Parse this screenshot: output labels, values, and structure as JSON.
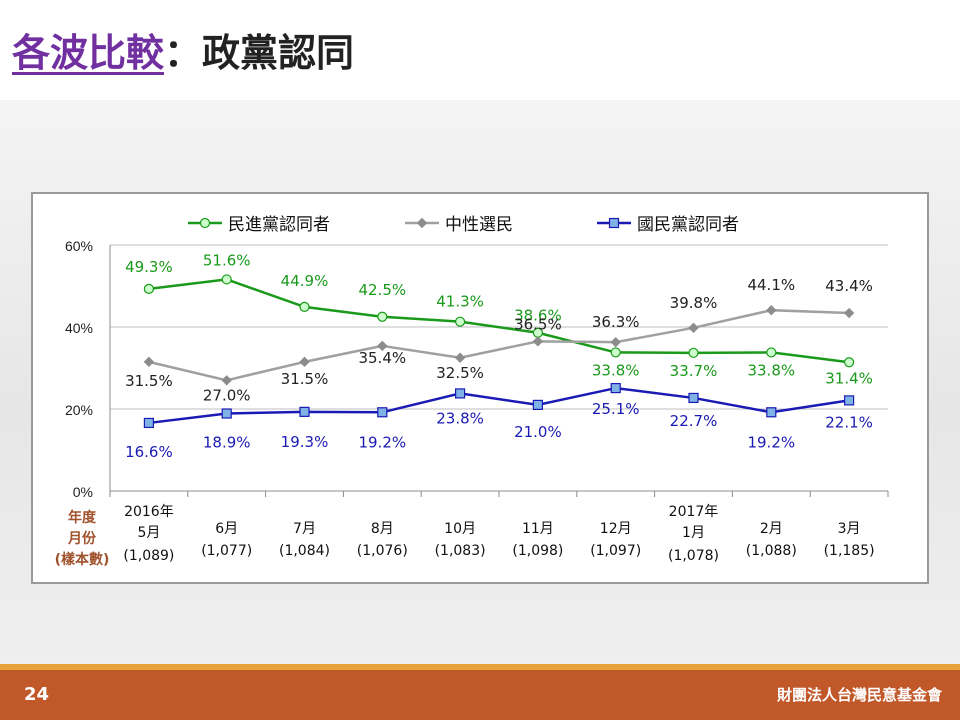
{
  "header": {
    "title_main": "各波比較",
    "title_sep": "：",
    "title_sub": "政黨認同"
  },
  "footer": {
    "page_number": "24",
    "org": "財團法人台灣民意基金會"
  },
  "colors": {
    "dpp": "#1a9a1a",
    "neutral": "#a0a0a0",
    "kmt": "#1a1ab4"
  },
  "chart_data": {
    "type": "line",
    "ylim": [
      0,
      60
    ],
    "y_ticks": [
      "0%",
      "20%",
      "40%",
      "60%"
    ],
    "y_tick_values": [
      0,
      20,
      40,
      60
    ],
    "legend_position": "top",
    "row_labels": [
      "年度",
      "月份",
      "(樣本數)"
    ],
    "categories": [
      {
        "year": "2016年",
        "month": "5月",
        "n": "(1,089)"
      },
      {
        "year": "",
        "month": "6月",
        "n": "(1,077)"
      },
      {
        "year": "",
        "month": "7月",
        "n": "(1,084)"
      },
      {
        "year": "",
        "month": "8月",
        "n": "(1,076)"
      },
      {
        "year": "",
        "month": "10月",
        "n": "(1,083)"
      },
      {
        "year": "",
        "month": "11月",
        "n": "(1,098)"
      },
      {
        "year": "",
        "month": "12月",
        "n": "(1,097)"
      },
      {
        "year": "2017年",
        "month": "1月",
        "n": "(1,078)"
      },
      {
        "year": "",
        "month": "2月",
        "n": "(1,088)"
      },
      {
        "year": "",
        "month": "3月",
        "n": "(1,185)"
      }
    ],
    "series": [
      {
        "name": "民進黨認同者",
        "key": "dpp",
        "values": [
          49.3,
          51.6,
          44.9,
          42.5,
          41.3,
          38.6,
          33.8,
          33.7,
          33.8,
          31.4
        ],
        "labels": [
          "49.3%",
          "51.6%",
          "44.9%",
          "42.5%",
          "41.3%",
          "38.6%",
          "33.8%",
          "33.7%",
          "33.8%",
          "31.4%"
        ]
      },
      {
        "name": "中性選民",
        "key": "neutral",
        "values": [
          31.5,
          27.0,
          31.5,
          35.4,
          32.5,
          36.5,
          36.3,
          39.8,
          44.1,
          43.4
        ],
        "labels": [
          "31.5%",
          "27.0%",
          "31.5%",
          "35.4%",
          "32.5%",
          "36.5%",
          "36.3%",
          "39.8%",
          "44.1%",
          "43.4%"
        ]
      },
      {
        "name": "國民黨認同者",
        "key": "kmt",
        "values": [
          16.6,
          18.9,
          19.3,
          19.2,
          23.8,
          21.0,
          25.1,
          22.7,
          19.2,
          22.1
        ],
        "labels": [
          "16.6%",
          "18.9%",
          "19.3%",
          "19.2%",
          "23.8%",
          "21.0%",
          "25.1%",
          "22.7%",
          "19.2%",
          "22.1%"
        ]
      }
    ]
  }
}
